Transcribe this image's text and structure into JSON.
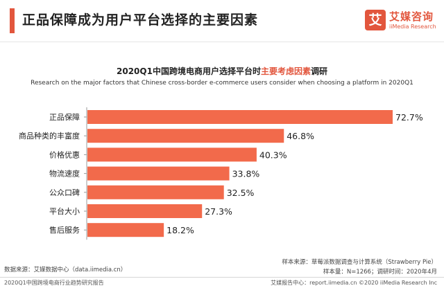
{
  "header": {
    "title": "正品保障成为用户平台选择的主要因素",
    "logo_mark": "艾",
    "logo_cn": "艾媒咨询",
    "logo_en": "iiMedia Research"
  },
  "colors": {
    "accent": "#e2563d",
    "bar": "#f26a4b",
    "text": "#222222"
  },
  "chart_data": {
    "type": "bar",
    "orientation": "horizontal",
    "title_prefix": "2020Q1中国跨境电商用户选择平台时",
    "title_highlight": "主要考虑因素",
    "title_suffix": "调研",
    "subtitle": "Research on the major factors that Chinese cross-border e-commerce users consider when choosing a platform in 2020Q1",
    "categories": [
      "正品保障",
      "商品种类的丰富度",
      "价格优惠",
      "物流速度",
      "公众口碑",
      "平台大小",
      "售后服务"
    ],
    "values": [
      72.7,
      46.8,
      40.3,
      33.8,
      32.5,
      27.3,
      18.2
    ],
    "value_labels": [
      "72.7%",
      "46.8%",
      "40.3%",
      "33.8%",
      "32.5%",
      "27.3%",
      "18.2%"
    ],
    "unit": "%",
    "xlim": [
      0,
      72.7
    ],
    "legend": "none"
  },
  "source": {
    "left": "数据来源：艾媒数据中心（data.iimedia.cn）",
    "right_line1": "样本来源：草莓派数据调查与计算系统（Strawberry Pie）",
    "right_line2": "样本量：N=1266；调研时间：2020年4月"
  },
  "footer": {
    "left": "2020Q1中国跨境电商行业趋势研究报告",
    "right": "艾媒报告中心：report.iimedia.cn   ©2020  iiMedia Research  Inc"
  }
}
